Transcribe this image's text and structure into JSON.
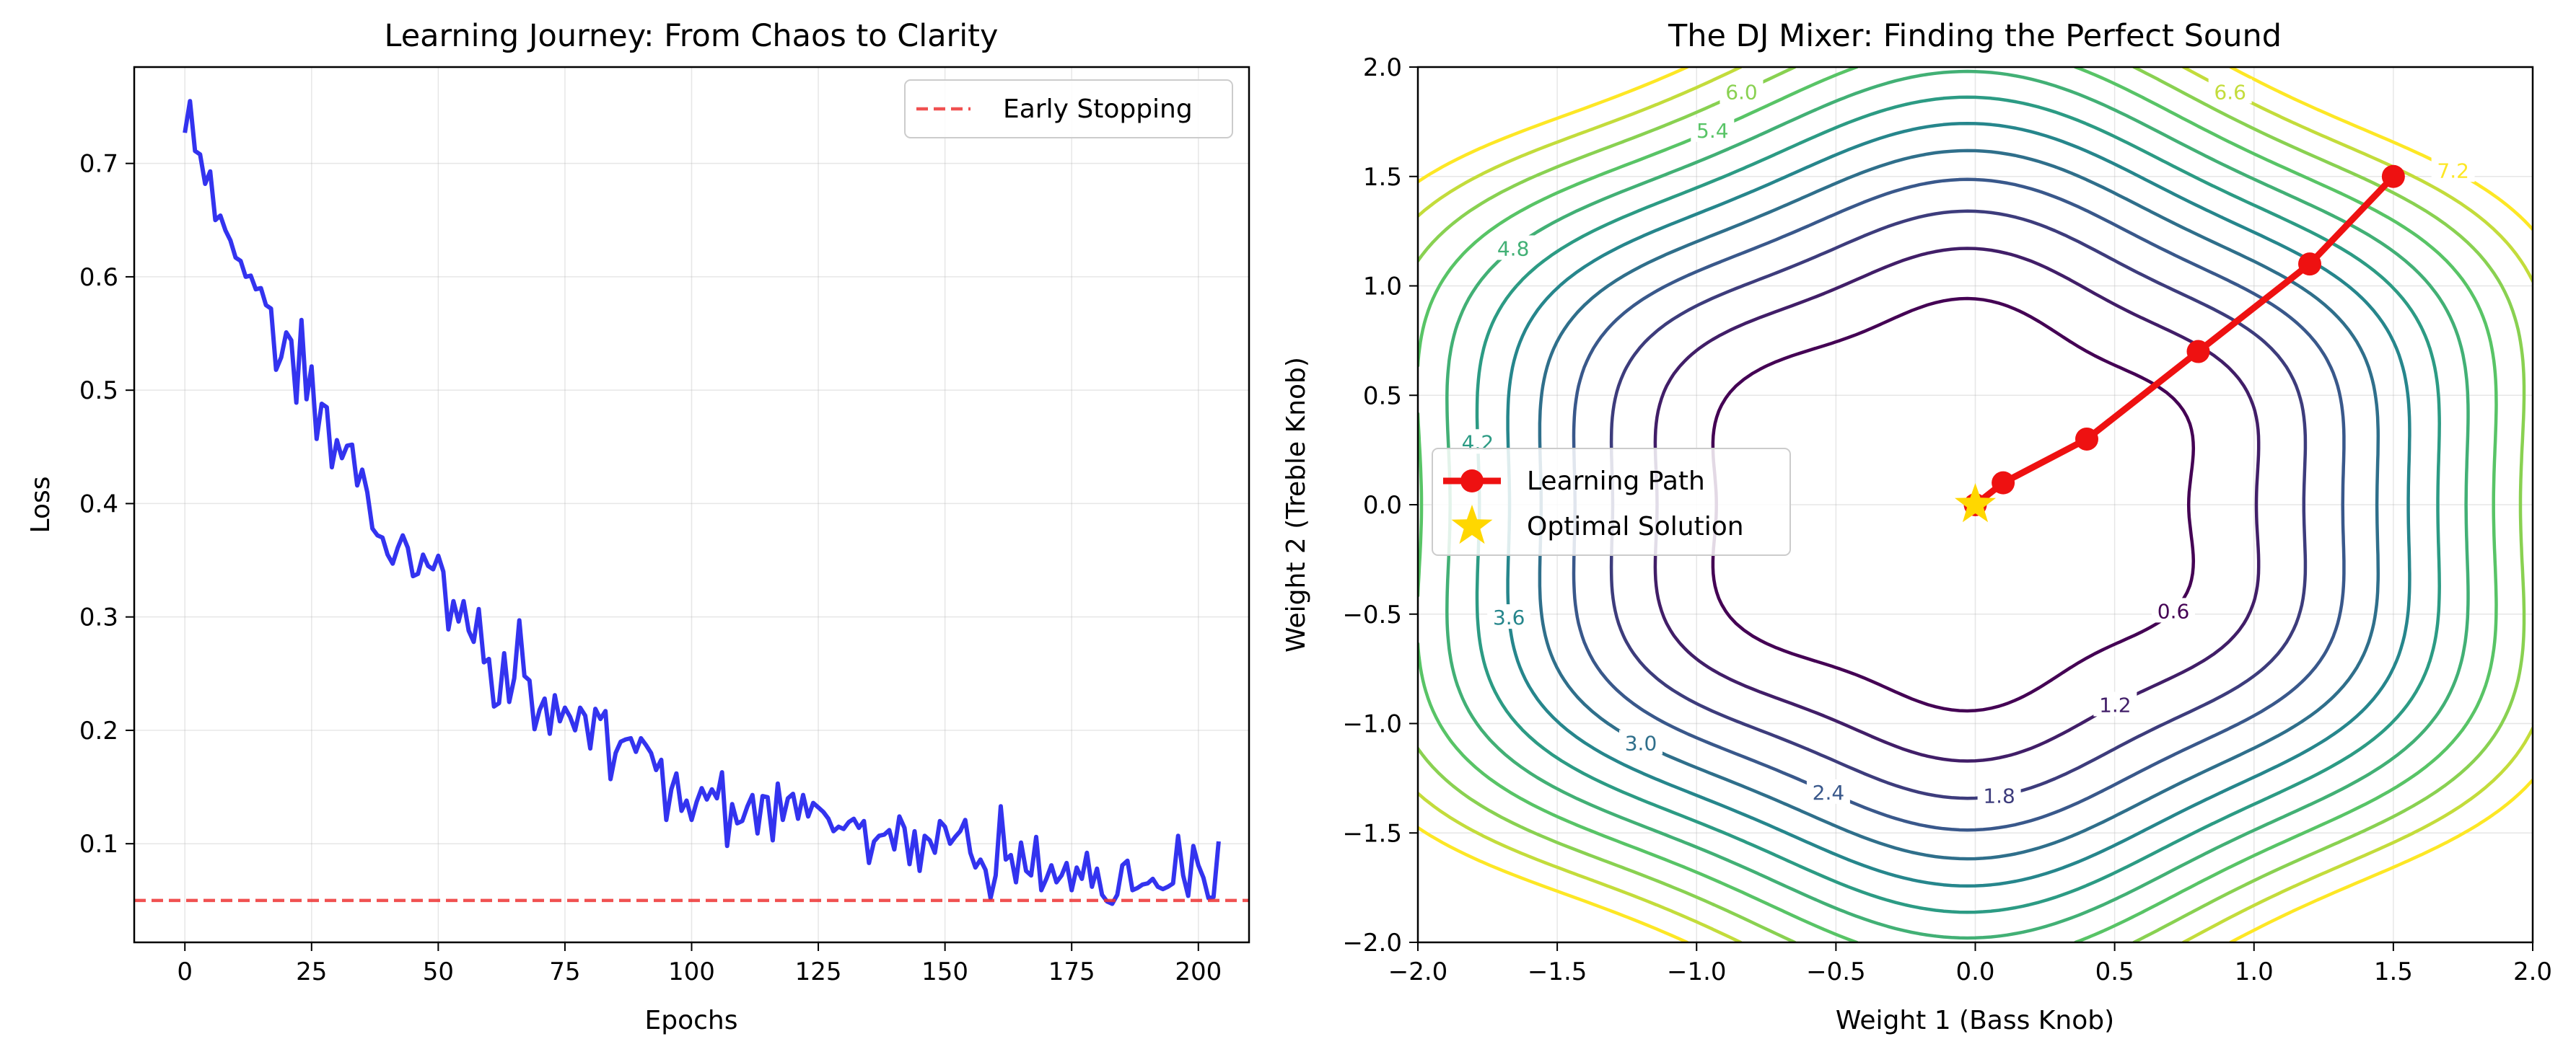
{
  "chart_data": [
    {
      "type": "line",
      "title": "Learning Journey: From Chaos to Clarity",
      "xlabel": "Epochs",
      "ylabel": "Loss",
      "xlim": [
        -10,
        210
      ],
      "ylim": [
        0.013,
        0.785
      ],
      "xticks": [
        0,
        25,
        50,
        75,
        100,
        125,
        150,
        175,
        200
      ],
      "yticks": [
        0.1,
        0.2,
        0.3,
        0.4,
        0.5,
        0.6,
        0.7
      ],
      "grid": true,
      "legend_position": "top-right",
      "colors": {
        "loss_line": "#2222ee",
        "early_stopping": "#ee3333"
      },
      "series": [
        {
          "style": "solid",
          "x_start": 0,
          "x_step": 1,
          "values": [
            0.727,
            0.755,
            0.711,
            0.708,
            0.682,
            0.693,
            0.65,
            0.654,
            0.641,
            0.632,
            0.617,
            0.614,
            0.6,
            0.601,
            0.589,
            0.59,
            0.575,
            0.572,
            0.518,
            0.529,
            0.551,
            0.544,
            0.489,
            0.562,
            0.492,
            0.521,
            0.457,
            0.488,
            0.485,
            0.432,
            0.456,
            0.44,
            0.451,
            0.452,
            0.416,
            0.43,
            0.41,
            0.378,
            0.372,
            0.37,
            0.355,
            0.347,
            0.361,
            0.372,
            0.361,
            0.336,
            0.338,
            0.355,
            0.345,
            0.342,
            0.354,
            0.34,
            0.289,
            0.314,
            0.296,
            0.314,
            0.288,
            0.278,
            0.307,
            0.26,
            0.263,
            0.221,
            0.224,
            0.268,
            0.225,
            0.246,
            0.297,
            0.248,
            0.244,
            0.201,
            0.218,
            0.228,
            0.197,
            0.231,
            0.208,
            0.22,
            0.212,
            0.2,
            0.22,
            0.213,
            0.184,
            0.219,
            0.21,
            0.217,
            0.157,
            0.18,
            0.19,
            0.192,
            0.193,
            0.181,
            0.193,
            0.187,
            0.18,
            0.165,
            0.174,
            0.121,
            0.148,
            0.162,
            0.129,
            0.138,
            0.121,
            0.137,
            0.149,
            0.139,
            0.148,
            0.14,
            0.163,
            0.098,
            0.135,
            0.118,
            0.12,
            0.133,
            0.143,
            0.109,
            0.142,
            0.141,
            0.103,
            0.153,
            0.121,
            0.14,
            0.144,
            0.122,
            0.143,
            0.124,
            0.136,
            0.132,
            0.128,
            0.122,
            0.111,
            0.115,
            0.113,
            0.119,
            0.122,
            0.114,
            0.12,
            0.083,
            0.102,
            0.107,
            0.108,
            0.112,
            0.095,
            0.124,
            0.114,
            0.082,
            0.111,
            0.076,
            0.107,
            0.103,
            0.092,
            0.12,
            0.115,
            0.1,
            0.106,
            0.111,
            0.121,
            0.092,
            0.079,
            0.086,
            0.077,
            0.052,
            0.072,
            0.133,
            0.086,
            0.09,
            0.066,
            0.101,
            0.076,
            0.072,
            0.106,
            0.059,
            0.069,
            0.081,
            0.066,
            0.072,
            0.083,
            0.059,
            0.079,
            0.069,
            0.092,
            0.062,
            0.078,
            0.055,
            0.049,
            0.047,
            0.055,
            0.081,
            0.085,
            0.059,
            0.061,
            0.064,
            0.065,
            0.069,
            0.062,
            0.06,
            0.062,
            0.065,
            0.107,
            0.072,
            0.054,
            0.098,
            0.081,
            0.07,
            0.052,
            0.053,
            0.102
          ]
        },
        {
          "name": "Early Stopping",
          "style": "dashed-horizontal",
          "values": [
            0.05
          ]
        }
      ]
    },
    {
      "type": "contour",
      "title": "The DJ Mixer: Finding the Perfect Sound",
      "xlabel": "Weight 1 (Bass Knob)",
      "ylabel": "Weight 2 (Treble Knob)",
      "xlim": [
        -2.0,
        2.0
      ],
      "ylim": [
        -2.0,
        2.0
      ],
      "xticks": [
        -2.0,
        -1.5,
        -1.0,
        -0.5,
        0.0,
        0.5,
        1.0,
        1.5,
        2.0
      ],
      "yticks": [
        -2.0,
        -1.5,
        -1.0,
        -0.5,
        0.0,
        0.5,
        1.0,
        1.5,
        2.0
      ],
      "grid": true,
      "legend_position": "center-left",
      "colormap": "viridis",
      "contour_levels": [
        0.6,
        1.2,
        1.8,
        2.4,
        3.0,
        3.6,
        4.2,
        4.8,
        5.4,
        6.0,
        6.6,
        7.2
      ],
      "contour_labels": [
        "0.6",
        "1.2",
        "1.8",
        "2.4",
        "3.0",
        "3.6",
        "4.2",
        "4.8",
        "5.4",
        "6.0",
        "6.6",
        "7.2"
      ],
      "series": [
        {
          "name": "Learning Path",
          "color": "#ee1111",
          "marker": "circle",
          "x": [
            1.5,
            1.2,
            0.8,
            0.4,
            0.1,
            0.0
          ],
          "y": [
            1.5,
            1.1,
            0.7,
            0.3,
            0.1,
            0.0
          ]
        },
        {
          "name": "Optimal Solution",
          "color": "#ffd700",
          "marker": "star",
          "x": [
            0.0
          ],
          "y": [
            0.0
          ]
        }
      ]
    }
  ]
}
